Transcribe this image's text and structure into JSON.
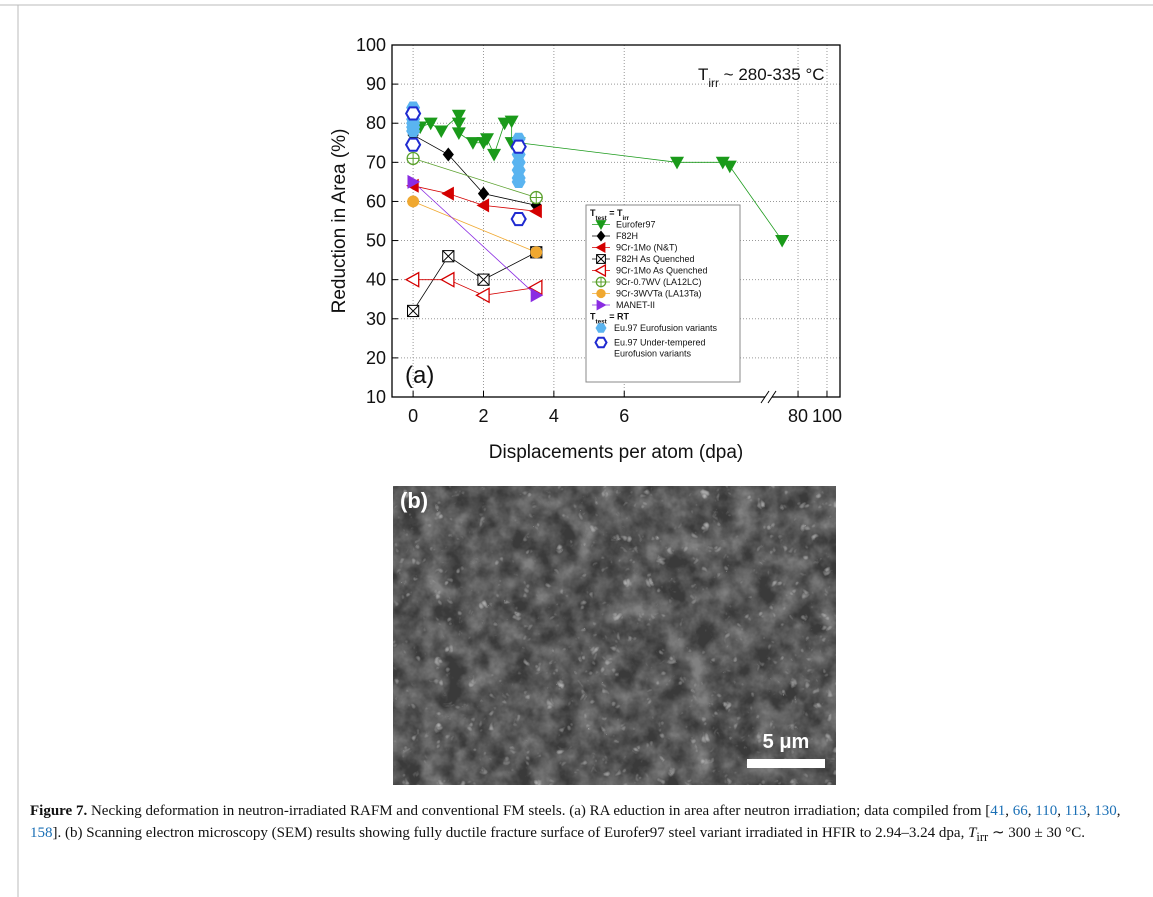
{
  "chart_data": {
    "type": "line",
    "ylabel": "Reduction in Area (%)",
    "xlabel": "Displacements per atom (dpa)",
    "annotation": [
      {
        "text": "T"
      },
      {
        "text": "irr",
        "sub": true
      },
      {
        "text": " ~ 280-335 °C"
      }
    ],
    "panel_label": "(a)",
    "ylim": [
      10,
      100
    ],
    "yticks": [
      10,
      20,
      30,
      40,
      50,
      60,
      70,
      80,
      90,
      100
    ],
    "xlim": [
      -0.6,
      109
    ],
    "xbreak": [
      10,
      62
    ],
    "xticks": [
      0,
      2,
      4,
      6,
      80,
      100
    ],
    "grid": true,
    "legend_headers": [
      [
        {
          "text": "T"
        },
        {
          "text": "test",
          "sub": true
        },
        {
          "text": " = T"
        },
        {
          "text": "irr",
          "sub": true
        }
      ],
      [
        {
          "text": "T"
        },
        {
          "text": "test",
          "sub": true
        },
        {
          "text": " = RT"
        }
      ]
    ],
    "series": [
      {
        "name": "Eurofer97",
        "color": "#1a9a1a",
        "marker": "tri-down",
        "group": 0,
        "connect": true,
        "x": [
          0.2,
          0.5,
          0.8,
          1.3,
          1.3,
          1.3,
          1.7,
          2.0,
          2.1,
          2.3,
          2.6,
          2.8,
          2.8,
          3.0,
          7.5,
          8.8,
          9.0,
          69
        ],
        "values": [
          79,
          80,
          78,
          82,
          80,
          77.5,
          75,
          75,
          76,
          72,
          80,
          80.5,
          75,
          75,
          70,
          70,
          69,
          50
        ]
      },
      {
        "name": "F82H",
        "color": "#000000",
        "marker": "diamond",
        "group": 0,
        "connect": true,
        "x": [
          0,
          1,
          2,
          3.5
        ],
        "values": [
          77,
          72,
          62,
          59
        ]
      },
      {
        "name": "9Cr-1Mo (N&T)",
        "color": "#d40000",
        "marker": "tri-left",
        "group": 0,
        "connect": true,
        "x": [
          0,
          1,
          2,
          3.5
        ],
        "values": [
          64,
          62,
          59,
          57.5
        ]
      },
      {
        "name": "F82H As Quenched",
        "color": "#000000",
        "marker": "square-x",
        "group": 0,
        "connect": true,
        "x": [
          0,
          1,
          2,
          3.5
        ],
        "values": [
          32,
          46,
          40,
          47
        ]
      },
      {
        "name": "9Cr-1Mo As Quenched",
        "color": "#d40000",
        "marker": "tri-left-open",
        "group": 0,
        "connect": true,
        "x": [
          0,
          1,
          2,
          3.5
        ],
        "values": [
          40,
          40,
          36,
          38
        ]
      },
      {
        "name": "9Cr-0.7WV (LA12LC)",
        "color": "#5aa02c",
        "marker": "circle-plus",
        "group": 0,
        "connect": true,
        "x": [
          0,
          3.5
        ],
        "values": [
          71,
          61
        ]
      },
      {
        "name": "9Cr-3WVTa (LA13Ta)",
        "color": "#f0a830",
        "marker": "circle",
        "group": 0,
        "connect": true,
        "x": [
          0,
          3.5
        ],
        "values": [
          60,
          47
        ]
      },
      {
        "name": "MANET-II",
        "color": "#8a2be2",
        "marker": "tri-right",
        "group": 0,
        "connect": true,
        "x": [
          0,
          3.5
        ],
        "values": [
          65,
          36
        ]
      },
      {
        "name": [
          "Eu.97 Eurofusion variants"
        ],
        "color": "#5ab4f0",
        "marker": "hex",
        "group": 1,
        "connect": false,
        "x": [
          0,
          0,
          0,
          0,
          0,
          0,
          3,
          3,
          3,
          3,
          3,
          3,
          3
        ],
        "values": [
          84,
          83,
          81,
          80,
          79,
          78,
          76,
          74,
          72,
          70,
          68,
          66,
          65
        ]
      },
      {
        "name": [
          "Eu.97 Under-tempered",
          "Eurofusion variants"
        ],
        "color": "#1f2ad0",
        "marker": "hex-open",
        "group": 1,
        "connect": false,
        "x": [
          0,
          0,
          3,
          3
        ],
        "values": [
          82.5,
          74.5,
          74,
          55.5
        ]
      }
    ]
  },
  "image": {
    "label": "(b)",
    "scale_bar": "5 μm"
  },
  "caption": {
    "label": "Figure 7.",
    "parts": [
      {
        "text": " Necking deformation in neutron-irradiated RAFM and conventional FM steels. (a) RA eduction in area after neutron irradiation; data compiled from ["
      },
      {
        "text": "41",
        "link": true
      },
      {
        "text": ", "
      },
      {
        "text": "66",
        "link": true
      },
      {
        "text": ", "
      },
      {
        "text": "110",
        "link": true
      },
      {
        "text": ", "
      },
      {
        "text": "113",
        "link": true
      },
      {
        "text": ", "
      },
      {
        "text": "130",
        "link": true
      },
      {
        "text": ", "
      },
      {
        "text": "158",
        "link": true
      },
      {
        "text": "]. (b) Scanning electron microscopy (SEM) results showing fully ductile fracture surface of Eurofer97 steel variant irradiated in HFIR to 2.94–3.24 dpa, "
      },
      {
        "text": "T",
        "italic": true
      },
      {
        "text": "irr",
        "sub": true
      },
      {
        "text": " ∼ 300 ± 30 °C."
      }
    ]
  }
}
